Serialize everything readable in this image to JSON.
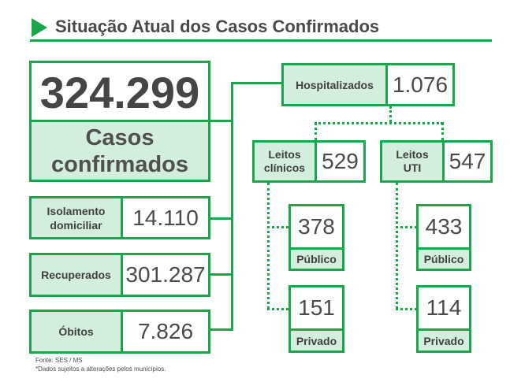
{
  "header": {
    "title": "Situação Atual dos Casos Confirmados"
  },
  "confirmados": {
    "value": "324.299",
    "label_line1": "Casos",
    "label_line2": "confirmados"
  },
  "isolamento": {
    "label_line1": "Isolamento",
    "label_line2": "domiciliar",
    "value": "14.110"
  },
  "recuperados": {
    "label": "Recuperados",
    "value": "301.287"
  },
  "obitos": {
    "label": "Óbitos",
    "value": "7.826"
  },
  "hospitalizados": {
    "label": "Hospitalizados",
    "value": "1.076"
  },
  "leitos_clinicos": {
    "label_line1": "Leitos",
    "label_line2": "clínicos",
    "value": "529",
    "publico": {
      "value": "378",
      "label": "Público"
    },
    "privado": {
      "value": "151",
      "label": "Privado"
    }
  },
  "leitos_uti": {
    "label_line1": "Leitos",
    "label_line2": "UTI",
    "value": "547",
    "publico": {
      "value": "433",
      "label": "Público"
    },
    "privado": {
      "value": "114",
      "label": "Privado"
    }
  },
  "footer": {
    "source": "Fonte: SES / MS",
    "note": "*Dados sujeitos a alterações pelos municípios."
  },
  "colors": {
    "accent": "#1aa64a",
    "fill": "#d3eedd",
    "text": "#3f3f3f"
  }
}
